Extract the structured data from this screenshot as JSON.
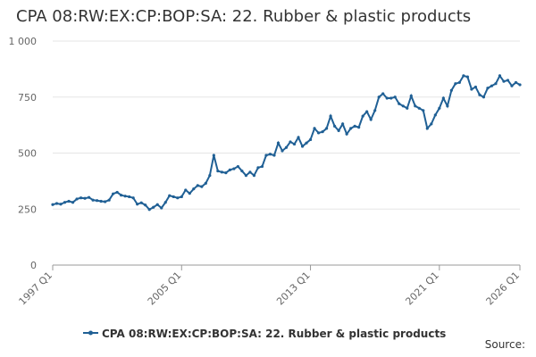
{
  "chart_data": {
    "type": "line",
    "title": "CPA 08:RW:EX:CP:BOP:SA: 22. Rubber & plastic products",
    "source": "Source:",
    "categories": [
      "1997 Q1",
      null,
      null,
      null,
      null,
      null,
      null,
      null,
      null,
      null,
      null,
      null,
      null,
      null,
      null,
      null,
      null,
      null,
      null,
      null,
      null,
      null,
      null,
      null,
      null,
      null,
      null,
      null,
      null,
      null,
      null,
      null,
      "2005 Q1",
      null,
      null,
      null,
      null,
      null,
      null,
      null,
      null,
      null,
      null,
      null,
      null,
      null,
      null,
      null,
      null,
      null,
      null,
      null,
      null,
      null,
      null,
      null,
      null,
      null,
      null,
      null,
      null,
      null,
      null,
      null,
      "2013 Q1",
      null,
      null,
      null,
      null,
      null,
      null,
      null,
      null,
      null,
      null,
      null,
      null,
      null,
      null,
      null,
      null,
      null,
      null,
      null,
      null,
      null,
      null,
      null,
      null,
      null,
      null,
      null,
      null,
      null,
      null,
      null,
      "2021 Q1",
      null,
      null,
      null,
      null,
      null,
      null,
      null,
      null,
      null,
      null,
      null,
      null,
      null,
      null,
      null,
      null,
      null,
      null,
      null,
      "2026 Q1"
    ],
    "series": [
      {
        "name": "CPA 08:RW:EX:CP:BOP:SA: 22. Rubber & plastic products",
        "color": "#206095",
        "values": [
          270,
          275,
          272,
          280,
          285,
          280,
          295,
          300,
          298,
          302,
          290,
          288,
          285,
          283,
          290,
          318,
          325,
          312,
          308,
          305,
          300,
          272,
          278,
          268,
          248,
          258,
          270,
          255,
          280,
          310,
          305,
          300,
          305,
          335,
          320,
          340,
          355,
          350,
          365,
          400,
          490,
          420,
          415,
          412,
          425,
          430,
          440,
          420,
          400,
          415,
          400,
          435,
          440,
          490,
          495,
          490,
          545,
          510,
          525,
          550,
          540,
          570,
          530,
          545,
          560,
          610,
          590,
          595,
          610,
          665,
          620,
          600,
          630,
          585,
          610,
          620,
          615,
          665,
          685,
          650,
          690,
          750,
          765,
          745,
          745,
          750,
          720,
          710,
          700,
          755,
          710,
          700,
          690,
          610,
          630,
          670,
          700,
          745,
          710,
          780,
          810,
          815,
          845,
          840,
          785,
          795,
          760,
          750,
          790,
          800,
          810,
          845,
          820,
          825,
          800,
          815,
          805
        ]
      }
    ],
    "ylim": [
      0,
      1000
    ],
    "yticks": [
      0,
      250,
      500,
      750,
      {
        "value": 1000,
        "label": "1 000"
      }
    ],
    "grid": true
  }
}
